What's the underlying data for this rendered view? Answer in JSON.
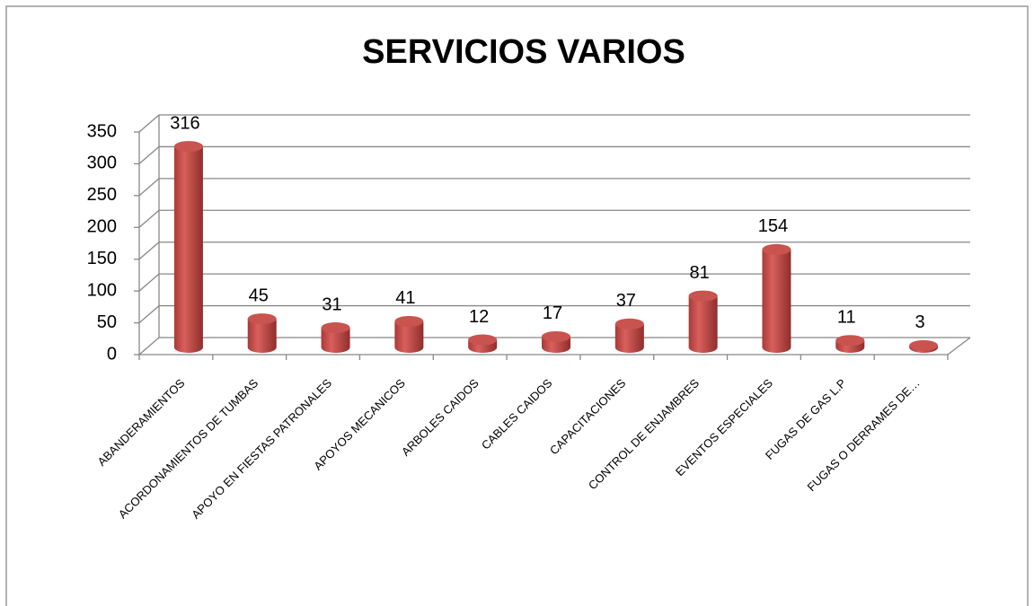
{
  "chart_data": {
    "type": "bar3d",
    "title": "SERVICIOS VARIOS",
    "categories": [
      "ABANDERAMIENTOS",
      "ACORDONAMIENTOS DE TUMBAS",
      "APOYO EN FIESTAS PATRONALES",
      "APOYOS MECANICOS",
      "ARBOLES CAIDOS",
      "CABLES CAIDOS",
      "CAPACITACIONES",
      "CONTROL DE ENJAMBRES",
      "EVENTOS ESPECIALES",
      "FUGAS DE GAS L.P",
      "FUGAS O DERRAMES DE…"
    ],
    "values": [
      316,
      45,
      31,
      41,
      12,
      17,
      37,
      81,
      154,
      11,
      3
    ],
    "color": "#c0504d",
    "ylim": [
      0,
      350
    ],
    "yticks": [
      0,
      50,
      100,
      150,
      200,
      250,
      300,
      350
    ],
    "grid": true
  }
}
